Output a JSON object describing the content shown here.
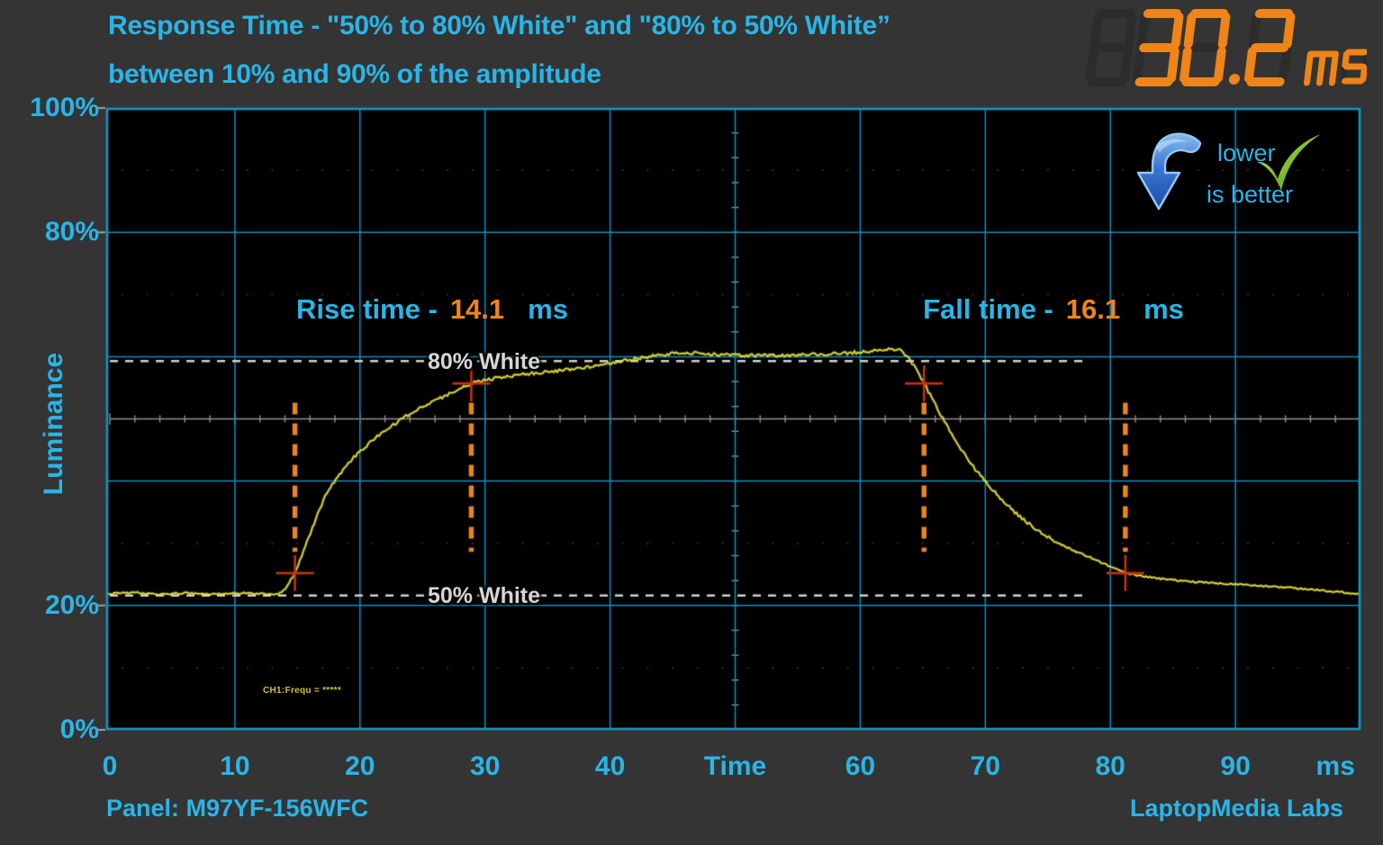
{
  "title": {
    "line1": "Response Time - \"50% to 80% White\" and \"80% to 50% White”",
    "line2": "between 10% and 90% of the amplitude"
  },
  "display": {
    "value": "30.2",
    "unit": "ms"
  },
  "badge": {
    "word1": "lower",
    "word2": "is better"
  },
  "annotations": {
    "rise_label": "Rise time -",
    "rise_value": "14.1",
    "rise_unit": "ms",
    "fall_label": "Fall time -",
    "fall_value": "16.1",
    "fall_unit": "ms",
    "white80_label": "80% White",
    "white50_label": "50% White",
    "ch1_readout": "CH1:Frequ = *****"
  },
  "footer": {
    "panel": "Panel: M97YF-156WFC",
    "credit": "LaptopMedia Labs"
  },
  "colors": {
    "accent_cyan": "#29b5e8",
    "accent_orange": "#ef8418",
    "grid_cyan": "#0c90c2",
    "border_cyan": "#0d9ac8",
    "trace_yellow": "#eae73a",
    "marker_orange": "#e8851c",
    "cross_red": "#c33212",
    "ref_white": "#d0d0d0",
    "center_gray": "#909090",
    "display_unlit": "#2c2c2c",
    "bg_outer": "#343434",
    "bg_plot": "#000000",
    "check_green": "#6cb41e",
    "arrow_blue": "#2a6ad4"
  },
  "chart_data": {
    "type": "line",
    "title": "Response Time - \"50% to 80% White\" and \"80% to 50% White” between 10% and 90% of the amplitude",
    "xlabel": "Time",
    "x_unit": "ms",
    "ylabel": "Luminance",
    "xlim": [
      0,
      100
    ],
    "ylim": [
      0,
      100
    ],
    "x_div": 10,
    "y_div": 20,
    "grid": true,
    "rise_time_ms": 14.1,
    "fall_time_ms": 16.1,
    "total_response_ms": 30.2,
    "x_ticks": [
      {
        "label": "0",
        "t": 0
      },
      {
        "label": "10",
        "t": 10
      },
      {
        "label": "20",
        "t": 20
      },
      {
        "label": "30",
        "t": 30
      },
      {
        "label": "40",
        "t": 40
      },
      {
        "label": "Time",
        "t": 50
      },
      {
        "label": "60",
        "t": 60
      },
      {
        "label": "70",
        "t": 70
      },
      {
        "label": "80",
        "t": 80
      },
      {
        "label": "90",
        "t": 90
      },
      {
        "label": "ms",
        "t": 98
      }
    ],
    "y_ticks": [
      {
        "label": "100%",
        "pct": 100
      },
      {
        "label": "80%",
        "pct": 80
      },
      {
        "label": "20%",
        "pct": 20
      },
      {
        "label": "0%",
        "pct": 0
      }
    ],
    "reference_levels": [
      {
        "name": "80% White",
        "luminance_pct": 59.3,
        "t_from": 0,
        "t_to": 78.3
      },
      {
        "name": "50% White",
        "luminance_pct": 21.6,
        "t_from": 0,
        "t_to": 78.3
      }
    ],
    "markers": {
      "line_span_pct": [
        28.6,
        52.6
      ],
      "points": [
        {
          "t": 14.8,
          "cross_pct": 25.2
        },
        {
          "t": 28.9,
          "cross_pct": 55.7
        },
        {
          "t": 65.1,
          "cross_pct": 55.7
        },
        {
          "t": 81.2,
          "cross_pct": 25.2
        }
      ]
    },
    "series": [
      {
        "name": "Luminance response",
        "points": [
          [
            0,
            21.9
          ],
          [
            2,
            22.1
          ],
          [
            4,
            21.8
          ],
          [
            6,
            22.0
          ],
          [
            8,
            21.8
          ],
          [
            10,
            22.0
          ],
          [
            12,
            21.9
          ],
          [
            13.4,
            21.8
          ],
          [
            14.0,
            22.6
          ],
          [
            14.8,
            25.2
          ],
          [
            15.5,
            28.8
          ],
          [
            16.3,
            33.0
          ],
          [
            17.2,
            37.6
          ],
          [
            18.3,
            41.0
          ],
          [
            19.5,
            43.8
          ],
          [
            20.8,
            46.2
          ],
          [
            22.2,
            48.4
          ],
          [
            23.6,
            50.3
          ],
          [
            25.1,
            52.1
          ],
          [
            26.7,
            53.6
          ],
          [
            28.9,
            55.7
          ],
          [
            31,
            56.6
          ],
          [
            33,
            57.2
          ],
          [
            35,
            57.6
          ],
          [
            37,
            58.0
          ],
          [
            39,
            58.6
          ],
          [
            41,
            59.3
          ],
          [
            43,
            60.0
          ],
          [
            45,
            60.5
          ],
          [
            47,
            60.6
          ],
          [
            49,
            60.3
          ],
          [
            51,
            60.2
          ],
          [
            53,
            60.2
          ],
          [
            55,
            60.3
          ],
          [
            57,
            60.4
          ],
          [
            59,
            60.6
          ],
          [
            61,
            60.9
          ],
          [
            62.5,
            61.3
          ],
          [
            63.3,
            61.0
          ],
          [
            64.2,
            58.9
          ],
          [
            65.1,
            55.7
          ],
          [
            66,
            52.3
          ],
          [
            67,
            48.6
          ],
          [
            68,
            45.3
          ],
          [
            69,
            42.4
          ],
          [
            70,
            39.9
          ],
          [
            71.2,
            37.2
          ],
          [
            72.5,
            34.7
          ],
          [
            74,
            32.3
          ],
          [
            75.5,
            30.4
          ],
          [
            77,
            28.9
          ],
          [
            78.5,
            27.6
          ],
          [
            80,
            26.2
          ],
          [
            81.2,
            25.2
          ],
          [
            82.5,
            24.7
          ],
          [
            84,
            24.3
          ],
          [
            86,
            23.9
          ],
          [
            88,
            23.6
          ],
          [
            90,
            23.4
          ],
          [
            92,
            23.1
          ],
          [
            94,
            22.9
          ],
          [
            96,
            22.6
          ],
          [
            98,
            22.2
          ],
          [
            100,
            21.8
          ]
        ]
      }
    ]
  }
}
